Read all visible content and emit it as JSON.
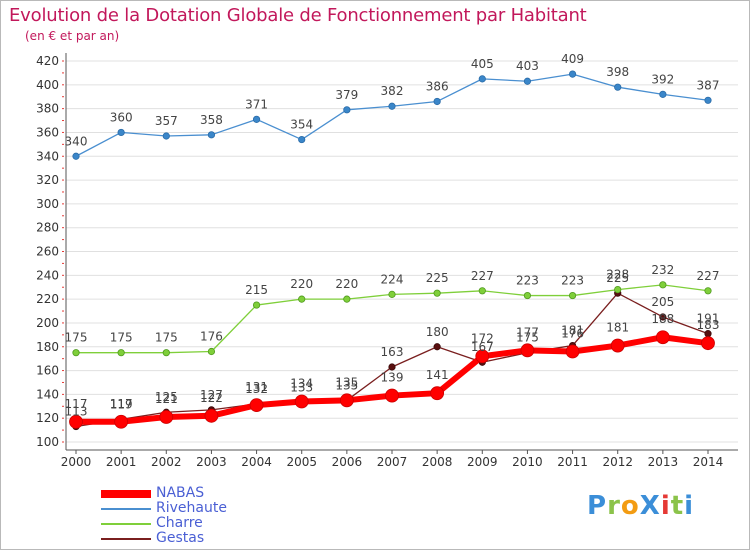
{
  "header": {
    "title": "Evolution de la Dotation Globale de Fonctionnement par Habitant",
    "subtitle": "(en € et par an)"
  },
  "logo": {
    "text": "ProXiti"
  },
  "colors": {
    "title": "#c2185b",
    "axis": "#555555",
    "grid": "#e0e0e0",
    "tick_marks": "#e53935",
    "legend_text": "#4a5fd4"
  },
  "chart_data": {
    "type": "line",
    "title": "Evolution de la Dotation Globale de Fonctionnement par Habitant",
    "subtitle": "(en € et par an)",
    "x": [
      "2000",
      "2001",
      "2002",
      "2003",
      "2004",
      "2005",
      "2006",
      "2007",
      "2008",
      "2009",
      "2010",
      "2011",
      "2012",
      "2013",
      "2014"
    ],
    "ylim": [
      100,
      420
    ],
    "yticks": [
      100,
      120,
      140,
      160,
      180,
      200,
      220,
      240,
      260,
      280,
      300,
      320,
      340,
      360,
      380,
      400,
      420
    ],
    "grid": true,
    "legend_position": "bottom-left",
    "series": [
      {
        "name": "NABAS",
        "color": "#ff0000",
        "values": [
          117,
          117,
          121,
          122,
          131,
          134,
          135,
          139,
          141,
          172,
          177,
          176,
          181,
          188,
          183
        ],
        "labels": [
          "117",
          "117",
          "121",
          "122",
          "131",
          "134",
          "135",
          "139",
          "141",
          "172",
          "177",
          "176",
          "181",
          "188",
          "183"
        ]
      },
      {
        "name": "Rivehaute",
        "color": "#4a8fd0",
        "values": [
          340,
          360,
          357,
          358,
          371,
          354,
          379,
          382,
          386,
          405,
          403,
          409,
          398,
          392,
          387
        ],
        "labels": [
          "340",
          "360",
          "357",
          "358",
          "371",
          "354",
          "379",
          "382",
          "386",
          "405",
          "403",
          "409",
          "398",
          "392",
          "387"
        ]
      },
      {
        "name": "Charre",
        "color": "#7fcf3a",
        "values": [
          175,
          175,
          175,
          176,
          215,
          220,
          220,
          224,
          225,
          227,
          223,
          223,
          228,
          232,
          227
        ],
        "labels": [
          "175",
          "175",
          "175",
          "176",
          "215",
          "220",
          "220",
          "224",
          "225",
          "227",
          "223",
          "223",
          "228",
          "232",
          "227"
        ]
      },
      {
        "name": "Gestas",
        "color": "#7a1f1f",
        "values": [
          113,
          119,
          125,
          127,
          132,
          133,
          135,
          163,
          180,
          167,
          175,
          181,
          225,
          205,
          191
        ],
        "labels": [
          "113",
          "119",
          "125",
          "127",
          "132",
          "133",
          "135",
          "163",
          "180",
          "167",
          "175",
          "181",
          "225",
          "205",
          "191"
        ]
      }
    ]
  }
}
